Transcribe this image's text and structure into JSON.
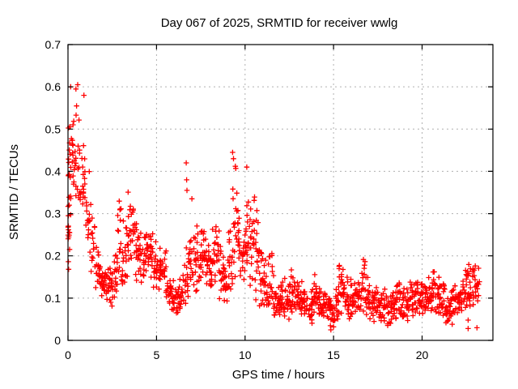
{
  "title": "Day 067 of 2025, SRMTID for receiver wwlg",
  "axes": {
    "xlabel": "GPS time / hours",
    "ylabel": "SRMTID / TECUs"
  },
  "colors": {
    "marker": "#ff0000",
    "grid": "#b0b0b0",
    "axis": "#000000",
    "background": "#ffffff"
  },
  "chart_data": {
    "type": "scatter",
    "title": "Day 067 of 2025, SRMTID for receiver wwlg",
    "xlabel": "GPS time / hours",
    "ylabel": "SRMTID / TECUs",
    "series_name": "SRMTID",
    "marker": "plus",
    "grid": true,
    "legend": "none",
    "xlim": [
      0,
      24
    ],
    "ylim": [
      0,
      0.7
    ],
    "x_ticks": [
      {
        "v": 0,
        "label": "0"
      },
      {
        "v": 5,
        "label": "5"
      },
      {
        "v": 10,
        "label": "10"
      },
      {
        "v": 15,
        "label": "15"
      },
      {
        "v": 20,
        "label": "20"
      }
    ],
    "y_ticks": [
      {
        "v": 0.0,
        "label": "0"
      },
      {
        "v": 0.1,
        "label": "0.1"
      },
      {
        "v": 0.2,
        "label": "0.2"
      },
      {
        "v": 0.3,
        "label": "0.3"
      },
      {
        "v": 0.4,
        "label": "0.4"
      },
      {
        "v": 0.5,
        "label": "0.5"
      },
      {
        "v": 0.6,
        "label": "0.6"
      },
      {
        "v": 0.7,
        "label": "0.7"
      }
    ],
    "seed": 2025067,
    "envelope_bins": [
      [
        0.0,
        0.1,
        0.6,
        24,
        0.1
      ],
      [
        0.1,
        0.28,
        0.61,
        16,
        0.2
      ],
      [
        0.3,
        0.3,
        0.61,
        14,
        0.25
      ],
      [
        0.55,
        0.3,
        0.58,
        12,
        0.25
      ],
      [
        0.8,
        0.24,
        0.5,
        16,
        0.25
      ],
      [
        1.05,
        0.2,
        0.45,
        14,
        0.25
      ],
      [
        1.3,
        0.15,
        0.33,
        14,
        0.25
      ],
      [
        1.55,
        0.1,
        0.24,
        16,
        0.25
      ],
      [
        1.8,
        0.09,
        0.2,
        16,
        0.25
      ],
      [
        2.05,
        0.09,
        0.19,
        16,
        0.25
      ],
      [
        2.3,
        0.08,
        0.18,
        16,
        0.25
      ],
      [
        2.55,
        0.1,
        0.22,
        16,
        0.25
      ],
      [
        2.8,
        0.11,
        0.38,
        16,
        0.25
      ],
      [
        3.05,
        0.11,
        0.3,
        16,
        0.25
      ],
      [
        3.3,
        0.14,
        0.38,
        16,
        0.25
      ],
      [
        3.55,
        0.15,
        0.35,
        16,
        0.25
      ],
      [
        3.8,
        0.14,
        0.3,
        16,
        0.25
      ],
      [
        4.05,
        0.13,
        0.26,
        16,
        0.25
      ],
      [
        4.3,
        0.14,
        0.28,
        16,
        0.25
      ],
      [
        4.55,
        0.14,
        0.27,
        16,
        0.25
      ],
      [
        4.8,
        0.12,
        0.25,
        16,
        0.25
      ],
      [
        5.05,
        0.12,
        0.24,
        16,
        0.25
      ],
      [
        5.3,
        0.1,
        0.22,
        16,
        0.25
      ],
      [
        5.55,
        0.08,
        0.18,
        16,
        0.25
      ],
      [
        5.8,
        0.06,
        0.15,
        16,
        0.25
      ],
      [
        6.05,
        0.06,
        0.14,
        16,
        0.25
      ],
      [
        6.3,
        0.07,
        0.16,
        16,
        0.25
      ],
      [
        6.55,
        0.08,
        0.24,
        14,
        0.25
      ],
      [
        6.8,
        0.1,
        0.28,
        16,
        0.25
      ],
      [
        7.05,
        0.11,
        0.28,
        16,
        0.25
      ],
      [
        7.3,
        0.12,
        0.3,
        16,
        0.25
      ],
      [
        7.55,
        0.13,
        0.3,
        16,
        0.25
      ],
      [
        7.8,
        0.12,
        0.28,
        16,
        0.25
      ],
      [
        8.05,
        0.11,
        0.28,
        16,
        0.25
      ],
      [
        8.3,
        0.1,
        0.3,
        16,
        0.25
      ],
      [
        8.55,
        0.09,
        0.25,
        16,
        0.25
      ],
      [
        8.8,
        0.08,
        0.22,
        16,
        0.25
      ],
      [
        9.05,
        0.1,
        0.28,
        16,
        0.25
      ],
      [
        9.3,
        0.13,
        0.44,
        16,
        0.25
      ],
      [
        9.55,
        0.12,
        0.38,
        16,
        0.25
      ],
      [
        9.8,
        0.1,
        0.32,
        16,
        0.25
      ],
      [
        10.05,
        0.12,
        0.4,
        18,
        0.25
      ],
      [
        10.3,
        0.1,
        0.36,
        16,
        0.25
      ],
      [
        10.55,
        0.09,
        0.33,
        16,
        0.25
      ],
      [
        10.8,
        0.08,
        0.25,
        16,
        0.25
      ],
      [
        11.05,
        0.06,
        0.2,
        16,
        0.25
      ],
      [
        11.3,
        0.07,
        0.21,
        16,
        0.25
      ],
      [
        11.55,
        0.05,
        0.17,
        16,
        0.25
      ],
      [
        11.8,
        0.04,
        0.15,
        16,
        0.25
      ],
      [
        12.05,
        0.05,
        0.15,
        16,
        0.25
      ],
      [
        12.3,
        0.05,
        0.16,
        16,
        0.25
      ],
      [
        12.55,
        0.06,
        0.21,
        16,
        0.25
      ],
      [
        12.8,
        0.06,
        0.19,
        16,
        0.25
      ],
      [
        13.05,
        0.05,
        0.15,
        16,
        0.25
      ],
      [
        13.3,
        0.05,
        0.14,
        16,
        0.25
      ],
      [
        13.55,
        0.04,
        0.14,
        16,
        0.25
      ],
      [
        13.8,
        0.05,
        0.16,
        16,
        0.25
      ],
      [
        14.05,
        0.05,
        0.14,
        16,
        0.25
      ],
      [
        14.3,
        0.05,
        0.13,
        16,
        0.25
      ],
      [
        14.55,
        0.04,
        0.12,
        16,
        0.25
      ],
      [
        14.8,
        0.02,
        0.11,
        16,
        0.25
      ],
      [
        15.05,
        0.04,
        0.13,
        16,
        0.25
      ],
      [
        15.3,
        0.06,
        0.2,
        16,
        0.25
      ],
      [
        15.55,
        0.06,
        0.17,
        16,
        0.25
      ],
      [
        15.8,
        0.05,
        0.15,
        16,
        0.25
      ],
      [
        16.05,
        0.05,
        0.15,
        16,
        0.25
      ],
      [
        16.3,
        0.06,
        0.16,
        16,
        0.25
      ],
      [
        16.55,
        0.06,
        0.21,
        16,
        0.25
      ],
      [
        16.8,
        0.05,
        0.16,
        16,
        0.25
      ],
      [
        17.05,
        0.04,
        0.14,
        16,
        0.25
      ],
      [
        17.3,
        0.05,
        0.14,
        16,
        0.25
      ],
      [
        17.55,
        0.04,
        0.12,
        16,
        0.25
      ],
      [
        17.8,
        0.04,
        0.13,
        16,
        0.25
      ],
      [
        18.05,
        0.03,
        0.12,
        16,
        0.25
      ],
      [
        18.3,
        0.04,
        0.13,
        16,
        0.25
      ],
      [
        18.55,
        0.05,
        0.17,
        16,
        0.25
      ],
      [
        18.8,
        0.05,
        0.14,
        16,
        0.25
      ],
      [
        19.05,
        0.04,
        0.14,
        16,
        0.25
      ],
      [
        19.3,
        0.05,
        0.16,
        16,
        0.25
      ],
      [
        19.55,
        0.06,
        0.17,
        16,
        0.25
      ],
      [
        19.8,
        0.05,
        0.14,
        16,
        0.25
      ],
      [
        20.05,
        0.05,
        0.14,
        16,
        0.25
      ],
      [
        20.3,
        0.06,
        0.16,
        16,
        0.25
      ],
      [
        20.55,
        0.06,
        0.18,
        16,
        0.25
      ],
      [
        20.8,
        0.05,
        0.15,
        16,
        0.25
      ],
      [
        21.05,
        0.05,
        0.14,
        16,
        0.25
      ],
      [
        21.3,
        0.04,
        0.13,
        16,
        0.25
      ],
      [
        21.55,
        0.03,
        0.14,
        16,
        0.25
      ],
      [
        21.8,
        0.05,
        0.15,
        16,
        0.25
      ],
      [
        22.05,
        0.06,
        0.15,
        16,
        0.25
      ],
      [
        22.3,
        0.07,
        0.18,
        16,
        0.25
      ],
      [
        22.55,
        0.08,
        0.2,
        16,
        0.25
      ],
      [
        22.8,
        0.08,
        0.2,
        14,
        0.25
      ],
      [
        23.05,
        0.08,
        0.19,
        10,
        0.2
      ]
    ],
    "outlier_points": [
      [
        0.15,
        0.6
      ],
      [
        0.45,
        0.595
      ],
      [
        0.55,
        0.605
      ],
      [
        0.9,
        0.58
      ],
      [
        6.68,
        0.42
      ],
      [
        6.7,
        0.38
      ],
      [
        6.72,
        0.355
      ],
      [
        7.0,
        0.335
      ],
      [
        9.3,
        0.445
      ],
      [
        9.35,
        0.43
      ],
      [
        10.1,
        0.41
      ],
      [
        14.85,
        0.025
      ],
      [
        15.0,
        0.032
      ],
      [
        22.6,
        0.048
      ],
      [
        22.6,
        0.028
      ],
      [
        23.1,
        0.03
      ]
    ]
  }
}
